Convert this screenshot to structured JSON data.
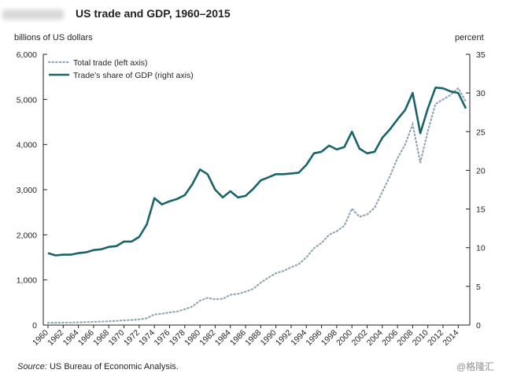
{
  "chart_data": {
    "type": "line",
    "title": "US trade and GDP, 1960–2015",
    "left_axis_label": "billions of US dollars",
    "right_axis_label": "percent",
    "source_prefix": "Source:",
    "source_text": " US Bureau of Economic Analysis.",
    "watermark": "@格隆汇",
    "x_range": [
      1960,
      2015
    ],
    "x_ticks": [
      1960,
      1962,
      1964,
      1966,
      1968,
      1970,
      1972,
      1974,
      1976,
      1978,
      1980,
      1982,
      1984,
      1986,
      1988,
      1990,
      1992,
      1994,
      1996,
      1998,
      2000,
      2002,
      2004,
      2006,
      2008,
      2010,
      2012,
      2014
    ],
    "left_ylim": [
      0,
      6000
    ],
    "left_ticks": [
      "0",
      "1,000",
      "2,000",
      "3,000",
      "4,000",
      "5,000",
      "6,000"
    ],
    "right_ylim": [
      0,
      35
    ],
    "right_ticks": [
      "0",
      "5",
      "10",
      "15",
      "20",
      "25",
      "30",
      "35"
    ],
    "legend": {
      "position": "top-left",
      "total_trade": "Total trade (left axis)",
      "share_gdp": "Trade’s share of GDP (right axis)"
    },
    "colors": {
      "total_trade": "#8fa8b4",
      "share_gdp": "#1a6468",
      "axis": "#231f20"
    },
    "years": [
      1960,
      1961,
      1962,
      1963,
      1964,
      1965,
      1966,
      1967,
      1968,
      1969,
      1970,
      1971,
      1972,
      1973,
      1974,
      1975,
      1976,
      1977,
      1978,
      1979,
      1980,
      1981,
      1982,
      1983,
      1984,
      1985,
      1986,
      1987,
      1988,
      1989,
      1990,
      1991,
      1992,
      1993,
      1994,
      1995,
      1996,
      1997,
      1998,
      1999,
      2000,
      2001,
      2002,
      2003,
      2004,
      2005,
      2006,
      2007,
      2008,
      2009,
      2010,
      2011,
      2012,
      2013,
      2014,
      2015
    ],
    "series": [
      {
        "name": "Total trade (left axis)",
        "axis": "left",
        "values": [
          50,
          52,
          54,
          56,
          60,
          64,
          72,
          76,
          84,
          92,
          104,
          112,
          125,
          150,
          235,
          250,
          280,
          300,
          350,
          410,
          540,
          600,
          570,
          580,
          670,
          690,
          740,
          800,
          940,
          1050,
          1150,
          1200,
          1280,
          1350,
          1500,
          1700,
          1820,
          2000,
          2080,
          2200,
          2580,
          2400,
          2450,
          2600,
          2950,
          3300,
          3700,
          4000,
          4450,
          3600,
          4300,
          4900,
          5000,
          5100,
          5250,
          4950
        ]
      },
      {
        "name": "Trade’s share of GDP (right axis)",
        "axis": "right",
        "values": [
          9.3,
          9.0,
          9.1,
          9.1,
          9.3,
          9.4,
          9.7,
          9.8,
          10.1,
          10.2,
          10.8,
          10.8,
          11.4,
          13.0,
          16.4,
          15.6,
          16.0,
          16.3,
          16.8,
          18.2,
          20.1,
          19.5,
          17.5,
          16.5,
          17.3,
          16.5,
          16.7,
          17.6,
          18.7,
          19.1,
          19.5,
          19.5,
          19.6,
          19.7,
          20.7,
          22.2,
          22.4,
          23.2,
          22.7,
          23.0,
          25.0,
          22.8,
          22.2,
          22.4,
          24.2,
          25.3,
          26.6,
          27.8,
          30.0,
          24.8,
          28.0,
          30.7,
          30.6,
          30.2,
          30.0,
          28.0
        ]
      }
    ]
  }
}
